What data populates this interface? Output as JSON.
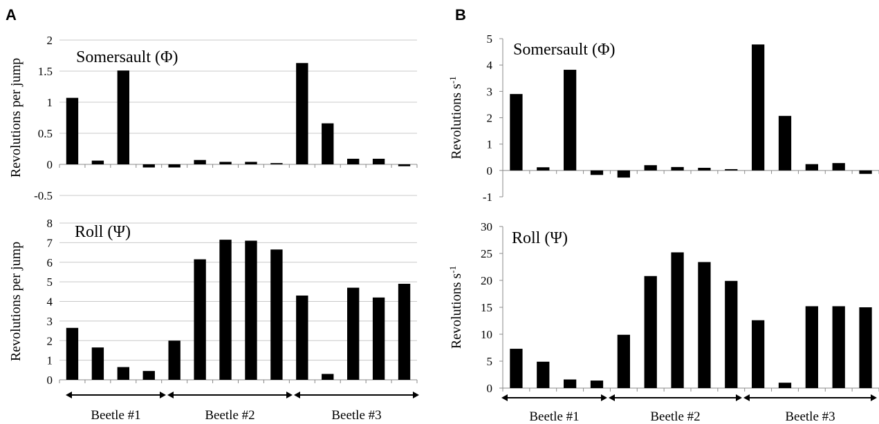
{
  "panels": [
    {
      "letter": "A"
    },
    {
      "letter": "B"
    }
  ],
  "groups": [
    "Beetle #1",
    "Beetle #2",
    "Beetle #3"
  ],
  "chart_data": [
    {
      "type": "bar",
      "panel": "A",
      "title": "Somersault (Φ)",
      "ylabel": "Revolutions per jump",
      "ylim": [
        -0.5,
        2
      ],
      "yticks": [
        -0.5,
        0,
        0.5,
        1,
        1.5,
        2
      ],
      "ytick_labels": [
        "-0.5",
        "0",
        "0.5",
        "1",
        "1.5",
        "2"
      ],
      "grid": true,
      "values": [
        1.07,
        0.06,
        1.51,
        -0.05,
        -0.05,
        0.07,
        0.04,
        0.04,
        0.02,
        1.63,
        0.66,
        0.09,
        0.09,
        -0.03
      ]
    },
    {
      "type": "bar",
      "panel": "A",
      "title": "Roll (Ψ)",
      "ylabel": "Revolutions per jump",
      "ylim": [
        0,
        8
      ],
      "yticks": [
        0,
        1,
        2,
        3,
        4,
        5,
        6,
        7,
        8
      ],
      "ytick_labels": [
        "0",
        "1",
        "2",
        "3",
        "4",
        "5",
        "6",
        "7",
        "8"
      ],
      "grid": true,
      "values": [
        2.65,
        1.65,
        0.65,
        0.45,
        2.0,
        6.15,
        7.15,
        7.1,
        6.65,
        4.3,
        0.3,
        4.7,
        4.2,
        4.9
      ]
    },
    {
      "type": "bar",
      "panel": "B",
      "title": "Somersault (Φ)",
      "ylabel": "Revolutions s",
      "ylabel_sup": "-1",
      "ylim": [
        -1,
        5
      ],
      "yticks": [
        -1,
        0,
        1,
        2,
        3,
        4,
        5
      ],
      "ytick_labels": [
        "-1",
        "0",
        "1",
        "2",
        "3",
        "4",
        "5"
      ],
      "grid": false,
      "values": [
        2.9,
        0.12,
        3.82,
        -0.17,
        -0.27,
        0.2,
        0.13,
        0.1,
        0.05,
        4.78,
        2.07,
        0.24,
        0.28,
        -0.13
      ]
    },
    {
      "type": "bar",
      "panel": "B",
      "title": "Roll (Ψ)",
      "ylabel": "Revolutions s",
      "ylabel_sup": "-1",
      "ylim": [
        0,
        30
      ],
      "yticks": [
        0,
        5,
        10,
        15,
        20,
        25,
        30
      ],
      "ytick_labels": [
        "0",
        "5",
        "10",
        "15",
        "20",
        "25",
        "30"
      ],
      "grid": false,
      "values": [
        7.3,
        4.9,
        1.6,
        1.4,
        9.9,
        20.8,
        25.2,
        23.4,
        19.9,
        12.6,
        1.0,
        15.2,
        15.2,
        15.0
      ]
    }
  ],
  "colors": {
    "bar": "#000000",
    "grid": "#c8c8c8",
    "axis": "#888888"
  }
}
